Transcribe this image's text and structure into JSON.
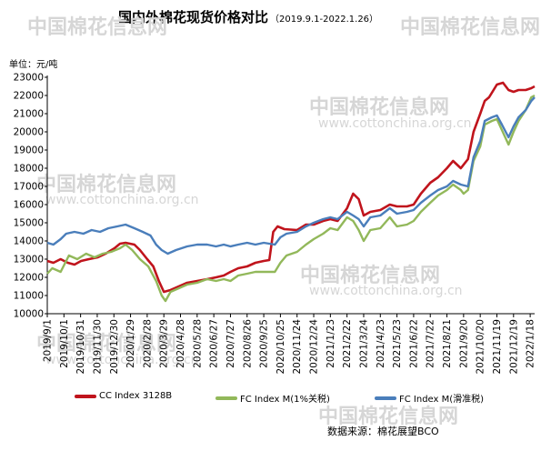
{
  "chart_data": {
    "type": "line",
    "title": "国内外棉花现货价格对比",
    "subtitle": "（2019.9.1-2022.1.26）",
    "unit_label": "单位：元/吨",
    "ylim": [
      10000,
      23000
    ],
    "yticks": [
      10000,
      11000,
      12000,
      13000,
      14000,
      15000,
      16000,
      17000,
      18000,
      19000,
      20000,
      21000,
      22000,
      23000
    ],
    "xlim": [
      "2019-09-01",
      "2022-01-26"
    ],
    "x_tick_labels": [
      "2019/9/1",
      "2019/10/1",
      "2019/10/31",
      "2019/11/30",
      "2019/12/30",
      "2020/1/29",
      "2020/2/28",
      "2020/3/29",
      "2020/4/28",
      "2020/5/28",
      "2020/6/27",
      "2020/7/27",
      "2020/8/26",
      "2020/9/25",
      "2020/10/25",
      "2020/11/24",
      "2020/12/24",
      "2021/1/23",
      "2021/2/22",
      "2021/3/24",
      "2021/4/23",
      "2021/5/23",
      "2021/6/22",
      "2021/7/22",
      "2021/8/21",
      "2021/9/20",
      "2021/10/20",
      "2021/11/19",
      "2021/12/19",
      "2022/1/18"
    ],
    "grid": false,
    "legend_position": "bottom",
    "series": [
      {
        "name": "CC Index 3128B",
        "color": "#c0141c",
        "points": [
          [
            "2019-09-01",
            12900
          ],
          [
            "2019-09-12",
            12800
          ],
          [
            "2019-09-25",
            13000
          ],
          [
            "2019-10-08",
            12800
          ],
          [
            "2019-10-20",
            12700
          ],
          [
            "2019-11-01",
            12900
          ],
          [
            "2019-11-15",
            13000
          ],
          [
            "2019-12-01",
            13100
          ],
          [
            "2019-12-15",
            13300
          ],
          [
            "2019-12-31",
            13600
          ],
          [
            "2020-01-10",
            13850
          ],
          [
            "2020-01-20",
            13900
          ],
          [
            "2020-02-05",
            13800
          ],
          [
            "2020-02-15",
            13500
          ],
          [
            "2020-02-28",
            13000
          ],
          [
            "2020-03-10",
            12600
          ],
          [
            "2020-03-20",
            11800
          ],
          [
            "2020-03-29",
            11200
          ],
          [
            "2020-04-10",
            11300
          ],
          [
            "2020-04-25",
            11500
          ],
          [
            "2020-05-10",
            11700
          ],
          [
            "2020-05-28",
            11800
          ],
          [
            "2020-06-15",
            11900
          ],
          [
            "2020-07-01",
            12000
          ],
          [
            "2020-07-15",
            12100
          ],
          [
            "2020-07-27",
            12300
          ],
          [
            "2020-08-10",
            12500
          ],
          [
            "2020-08-26",
            12600
          ],
          [
            "2020-09-10",
            12800
          ],
          [
            "2020-09-25",
            12900
          ],
          [
            "2020-10-05",
            12950
          ],
          [
            "2020-10-12",
            14500
          ],
          [
            "2020-10-20",
            14800
          ],
          [
            "2020-11-01",
            14650
          ],
          [
            "2020-11-24",
            14600
          ],
          [
            "2020-12-10",
            14900
          ],
          [
            "2020-12-24",
            14900
          ],
          [
            "2021-01-10",
            15100
          ],
          [
            "2021-01-23",
            15200
          ],
          [
            "2021-02-05",
            15100
          ],
          [
            "2021-02-22",
            15800
          ],
          [
            "2021-03-05",
            16600
          ],
          [
            "2021-03-15",
            16300
          ],
          [
            "2021-03-24",
            15400
          ],
          [
            "2021-04-05",
            15600
          ],
          [
            "2021-04-23",
            15700
          ],
          [
            "2021-05-10",
            16000
          ],
          [
            "2021-05-23",
            15900
          ],
          [
            "2021-06-10",
            15900
          ],
          [
            "2021-06-22",
            16000
          ],
          [
            "2021-07-05",
            16600
          ],
          [
            "2021-07-22",
            17200
          ],
          [
            "2021-08-05",
            17500
          ],
          [
            "2021-08-21",
            18000
          ],
          [
            "2021-09-01",
            18400
          ],
          [
            "2021-09-15",
            18000
          ],
          [
            "2021-09-28",
            18500
          ],
          [
            "2021-10-08",
            20000
          ],
          [
            "2021-10-20",
            21000
          ],
          [
            "2021-10-28",
            21700
          ],
          [
            "2021-11-05",
            21900
          ],
          [
            "2021-11-19",
            22600
          ],
          [
            "2021-11-30",
            22700
          ],
          [
            "2021-12-10",
            22300
          ],
          [
            "2021-12-19",
            22200
          ],
          [
            "2021-12-28",
            22300
          ],
          [
            "2022-01-10",
            22300
          ],
          [
            "2022-01-20",
            22400
          ],
          [
            "2022-01-26",
            22500
          ]
        ]
      },
      {
        "name": "FC Index M(1%关税)",
        "color": "#92b85a",
        "points": [
          [
            "2019-09-01",
            12200
          ],
          [
            "2019-09-10",
            12500
          ],
          [
            "2019-09-25",
            12300
          ],
          [
            "2019-10-10",
            13200
          ],
          [
            "2019-10-25",
            13000
          ],
          [
            "2019-11-10",
            13300
          ],
          [
            "2019-11-25",
            13100
          ],
          [
            "2019-12-10",
            13300
          ],
          [
            "2019-12-25",
            13400
          ],
          [
            "2020-01-10",
            13600
          ],
          [
            "2020-01-20",
            13800
          ],
          [
            "2020-02-01",
            13500
          ],
          [
            "2020-02-15",
            13000
          ],
          [
            "2020-03-01",
            12600
          ],
          [
            "2020-03-15",
            11800
          ],
          [
            "2020-03-25",
            11000
          ],
          [
            "2020-04-01",
            10700
          ],
          [
            "2020-04-10",
            11200
          ],
          [
            "2020-04-25",
            11400
          ],
          [
            "2020-05-10",
            11600
          ],
          [
            "2020-05-28",
            11700
          ],
          [
            "2020-06-15",
            11900
          ],
          [
            "2020-07-01",
            11800
          ],
          [
            "2020-07-15",
            11900
          ],
          [
            "2020-07-27",
            11800
          ],
          [
            "2020-08-10",
            12100
          ],
          [
            "2020-08-26",
            12200
          ],
          [
            "2020-09-10",
            12300
          ],
          [
            "2020-09-25",
            12300
          ],
          [
            "2020-10-15",
            12300
          ],
          [
            "2020-10-25",
            12800
          ],
          [
            "2020-11-05",
            13200
          ],
          [
            "2020-11-24",
            13400
          ],
          [
            "2020-12-10",
            13800
          ],
          [
            "2020-12-24",
            14100
          ],
          [
            "2021-01-10",
            14400
          ],
          [
            "2021-01-23",
            14700
          ],
          [
            "2021-02-05",
            14600
          ],
          [
            "2021-02-22",
            15300
          ],
          [
            "2021-03-05",
            15100
          ],
          [
            "2021-03-15",
            14600
          ],
          [
            "2021-03-24",
            14000
          ],
          [
            "2021-04-05",
            14600
          ],
          [
            "2021-04-23",
            14700
          ],
          [
            "2021-05-10",
            15300
          ],
          [
            "2021-05-23",
            14800
          ],
          [
            "2021-06-10",
            14900
          ],
          [
            "2021-06-22",
            15100
          ],
          [
            "2021-07-05",
            15600
          ],
          [
            "2021-07-22",
            16100
          ],
          [
            "2021-08-05",
            16500
          ],
          [
            "2021-08-21",
            16800
          ],
          [
            "2021-09-01",
            17100
          ],
          [
            "2021-09-15",
            16800
          ],
          [
            "2021-09-20",
            16600
          ],
          [
            "2021-09-28",
            16800
          ],
          [
            "2021-10-08",
            18400
          ],
          [
            "2021-10-20",
            19200
          ],
          [
            "2021-10-28",
            20400
          ],
          [
            "2021-11-10",
            20600
          ],
          [
            "2021-11-19",
            20700
          ],
          [
            "2021-11-28",
            20100
          ],
          [
            "2021-12-10",
            19300
          ],
          [
            "2021-12-19",
            20000
          ],
          [
            "2021-12-28",
            20600
          ],
          [
            "2022-01-10",
            21200
          ],
          [
            "2022-01-20",
            21900
          ],
          [
            "2022-01-26",
            22000
          ]
        ]
      },
      {
        "name": "FC Index M(滑准税)",
        "color": "#4a7ebb",
        "points": [
          [
            "2019-09-01",
            13900
          ],
          [
            "2019-09-12",
            13800
          ],
          [
            "2019-09-25",
            14100
          ],
          [
            "2019-10-05",
            14400
          ],
          [
            "2019-10-20",
            14500
          ],
          [
            "2019-11-05",
            14400
          ],
          [
            "2019-11-20",
            14600
          ],
          [
            "2019-12-05",
            14500
          ],
          [
            "2019-12-20",
            14700
          ],
          [
            "2020-01-05",
            14800
          ],
          [
            "2020-01-20",
            14900
          ],
          [
            "2020-02-05",
            14700
          ],
          [
            "2020-02-20",
            14500
          ],
          [
            "2020-03-05",
            14300
          ],
          [
            "2020-03-15",
            13800
          ],
          [
            "2020-03-25",
            13500
          ],
          [
            "2020-04-05",
            13300
          ],
          [
            "2020-04-20",
            13500
          ],
          [
            "2020-05-10",
            13700
          ],
          [
            "2020-05-28",
            13800
          ],
          [
            "2020-06-15",
            13800
          ],
          [
            "2020-07-01",
            13700
          ],
          [
            "2020-07-15",
            13800
          ],
          [
            "2020-07-27",
            13700
          ],
          [
            "2020-08-10",
            13800
          ],
          [
            "2020-08-26",
            13900
          ],
          [
            "2020-09-10",
            13800
          ],
          [
            "2020-09-25",
            13900
          ],
          [
            "2020-10-15",
            13800
          ],
          [
            "2020-10-25",
            14200
          ],
          [
            "2020-11-05",
            14400
          ],
          [
            "2020-11-24",
            14500
          ],
          [
            "2020-12-10",
            14800
          ],
          [
            "2020-12-24",
            15000
          ],
          [
            "2021-01-10",
            15200
          ],
          [
            "2021-01-23",
            15300
          ],
          [
            "2021-02-05",
            15200
          ],
          [
            "2021-02-22",
            15600
          ],
          [
            "2021-03-05",
            15400
          ],
          [
            "2021-03-15",
            15200
          ],
          [
            "2021-03-24",
            14800
          ],
          [
            "2021-04-05",
            15300
          ],
          [
            "2021-04-23",
            15400
          ],
          [
            "2021-05-10",
            15800
          ],
          [
            "2021-05-23",
            15500
          ],
          [
            "2021-06-10",
            15600
          ],
          [
            "2021-06-22",
            15700
          ],
          [
            "2021-07-05",
            16100
          ],
          [
            "2021-07-22",
            16500
          ],
          [
            "2021-08-05",
            16800
          ],
          [
            "2021-08-21",
            17000
          ],
          [
            "2021-09-01",
            17300
          ],
          [
            "2021-09-15",
            17100
          ],
          [
            "2021-09-28",
            17000
          ],
          [
            "2021-10-08",
            18600
          ],
          [
            "2021-10-20",
            19500
          ],
          [
            "2021-10-28",
            20600
          ],
          [
            "2021-11-10",
            20800
          ],
          [
            "2021-11-19",
            20900
          ],
          [
            "2021-11-28",
            20400
          ],
          [
            "2021-12-10",
            19700
          ],
          [
            "2021-12-19",
            20300
          ],
          [
            "2021-12-28",
            20800
          ],
          [
            "2022-01-10",
            21200
          ],
          [
            "2022-01-20",
            21700
          ],
          [
            "2022-01-26",
            21900
          ]
        ]
      }
    ]
  },
  "source_text": "数据来源：棉花展望BCO",
  "watermark": {
    "text_cn": "中国棉花信息网",
    "text_url": "www.cottonchina.org.cn"
  }
}
